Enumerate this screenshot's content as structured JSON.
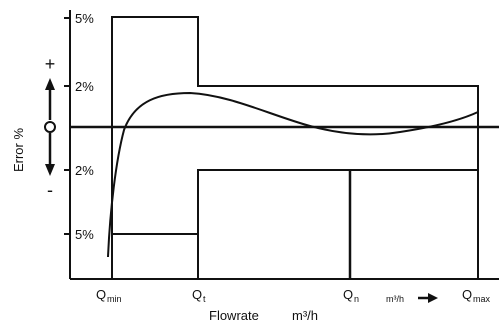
{
  "chart_data": {
    "type": "line",
    "y_axis": {
      "label": "Error %",
      "plus_symbol": "+",
      "minus_symbol": "-",
      "zero_symbol": "O",
      "tick_labels": [
        "5%",
        "2%",
        "2%",
        "5%"
      ],
      "tick_values": [
        5,
        2,
        -2,
        -5
      ]
    },
    "x_axis": {
      "label_main": "Flowrate",
      "label_unit": "m³/h",
      "unit_hint": "m³/h",
      "ticks": [
        {
          "main": "Q",
          "sub": "min"
        },
        {
          "main": "Q",
          "sub": "t"
        },
        {
          "main": "Q",
          "sub": "n"
        },
        {
          "main": "Q",
          "sub": "max"
        }
      ]
    },
    "error_limits": {
      "lower_range_percent": 5,
      "upper_range_percent": 2
    },
    "error_curve_description": "meter error curve rising steeply from below -5% at Qmin, peaking near +1.5% past Qt, dipping slightly below zero near Qn and rising toward Qmax"
  }
}
